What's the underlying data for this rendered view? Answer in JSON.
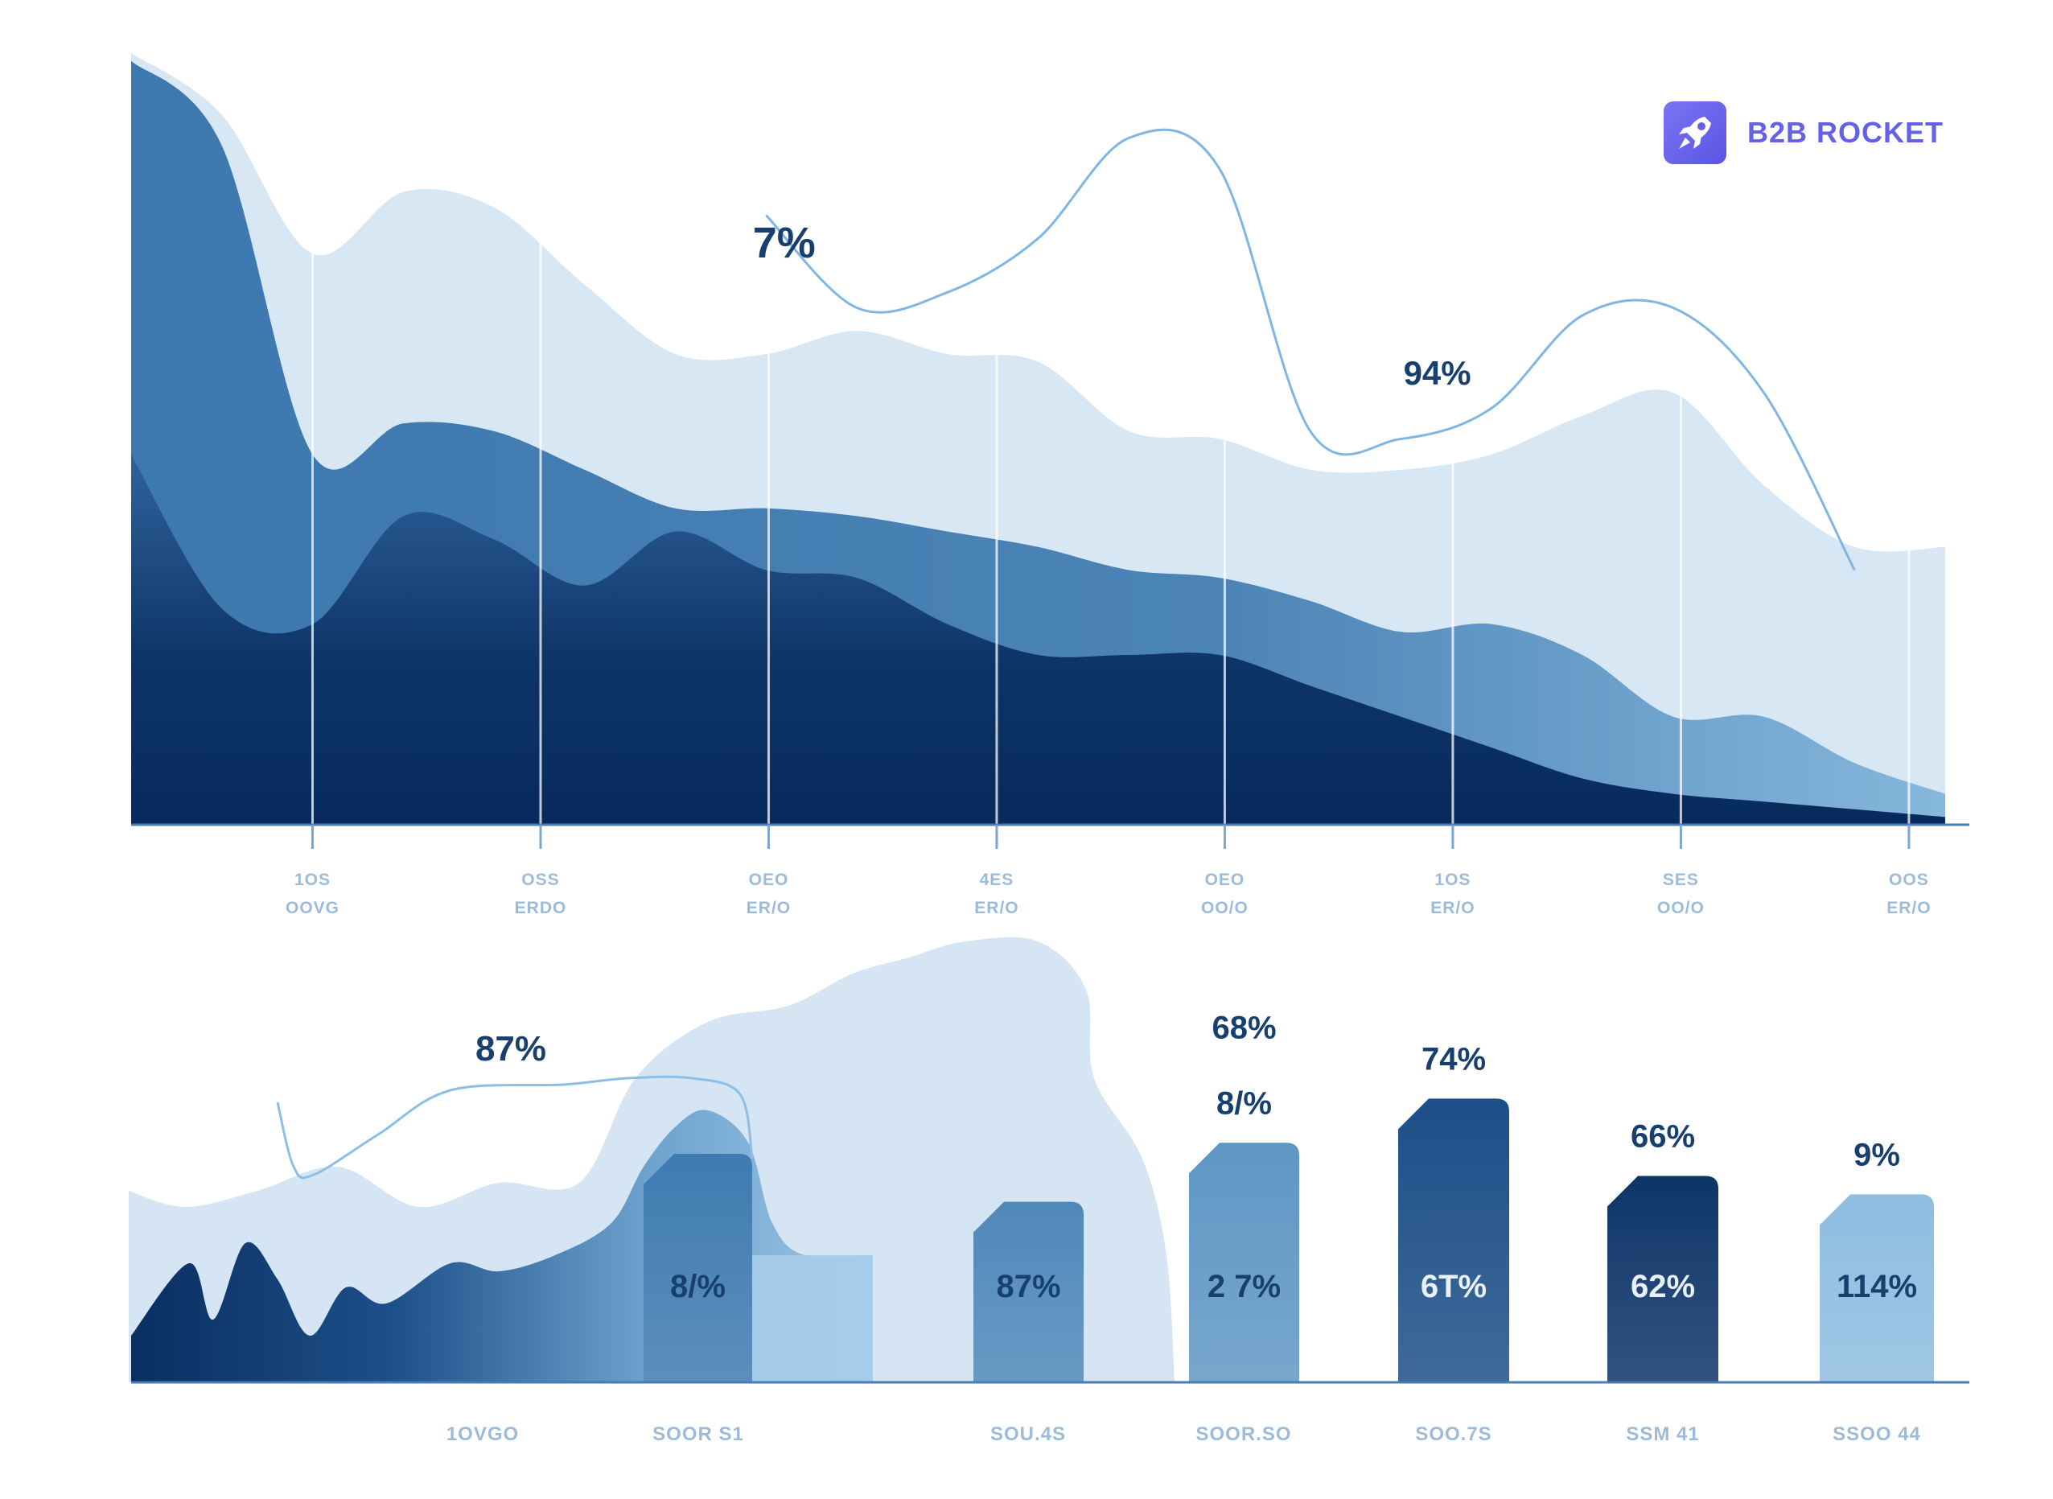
{
  "brand": {
    "name": "B2B ROCKET",
    "icon": "rocket-icon",
    "color": "#6561e6"
  },
  "colors": {
    "navy": "#0a2e61",
    "deep_blue": "#1d4f88",
    "mid_blue": "#3f7bb0",
    "steel_blue": "#5f97c4",
    "light_blue": "#9cc5e3",
    "pale_blue": "#d8e7f4",
    "axis": "#4a7cb0",
    "tick_text": "#9cbbd9",
    "label_text": "#17406f"
  },
  "chart_data": [
    {
      "type": "area",
      "title": "",
      "xlabel": "",
      "ylabel": "",
      "ylim": [
        0,
        100
      ],
      "x_ticks": [
        {
          "line1": "1OS",
          "line2": "OOVG"
        },
        {
          "line1": "OSS",
          "line2": "ERDO"
        },
        {
          "line1": "OEO",
          "line2": "ER/O"
        },
        {
          "line1": "4ES",
          "line2": "ER/O"
        },
        {
          "line1": "OEO",
          "line2": "OO/O"
        },
        {
          "line1": "1OS",
          "line2": "ER/O"
        },
        {
          "line1": "SES",
          "line2": "OO/O"
        },
        {
          "line1": "OOS",
          "line2": "ER/O"
        }
      ],
      "x": [
        0,
        5,
        10,
        15,
        20,
        25,
        30,
        35,
        40,
        45,
        50,
        55,
        60,
        65,
        70,
        75,
        80,
        85,
        90,
        95,
        100
      ],
      "series": [
        {
          "name": "pale",
          "values": [
            100,
            92,
            74,
            82,
            80,
            70,
            61,
            61,
            64,
            61,
            60,
            51,
            50,
            46,
            46,
            48,
            53,
            56,
            44,
            36,
            36
          ]
        },
        {
          "name": "mid",
          "values": [
            99,
            88,
            48,
            52,
            51,
            46,
            41,
            41,
            40,
            38,
            36,
            33,
            32,
            29,
            25,
            26,
            22,
            14,
            14,
            8,
            4
          ]
        },
        {
          "name": "navy",
          "values": [
            48,
            28,
            26,
            40,
            37,
            31,
            38,
            33,
            32,
            26,
            22,
            22,
            22,
            18,
            14,
            10,
            6,
            4,
            3,
            2,
            1
          ]
        }
      ],
      "trend_line": {
        "name": "highlight",
        "values": [
          null,
          null,
          null,
          null,
          null,
          null,
          null,
          79,
          67,
          69,
          76,
          89,
          85,
          51,
          50,
          54,
          66,
          67,
          56,
          33,
          null
        ]
      },
      "annotations": [
        {
          "text": "7%",
          "at_x": 36
        },
        {
          "text": "94%",
          "at_x": 72
        }
      ]
    },
    {
      "type": "bar",
      "title": "",
      "xlabel": "",
      "ylabel": "",
      "ylim": [
        0,
        100
      ],
      "area_annotation": "87%",
      "categories": [
        "1OVGO",
        "SOOR S1",
        "SOU.4S",
        "SOOR.SO",
        "SOO.7S",
        "SSM 41",
        "SSOO 44"
      ],
      "bars": [
        {
          "category": "SOOR S1",
          "value": 62,
          "inner_label": "8/%",
          "top_label": "",
          "top_label_2": "",
          "color": "#3f7bb0"
        },
        {
          "category": "SOU.4S",
          "value": 49,
          "inner_label": "87%",
          "top_label": "",
          "top_label_2": "",
          "color": "#4f88ba"
        },
        {
          "category": "SOOR.SO",
          "value": 65,
          "inner_label": "2 7%",
          "top_label": "8/%",
          "top_label_2": "68%",
          "color": "#5f97c4"
        },
        {
          "category": "SOO.7S",
          "value": 77,
          "inner_label": "6T%",
          "top_label": "74%",
          "top_label_2": "",
          "color": "#1d4f88"
        },
        {
          "category": "SSM 41",
          "value": 56,
          "inner_label": "62%",
          "top_label": "66%",
          "top_label_2": "",
          "color": "#0e3568"
        },
        {
          "category": "SSOO 44",
          "value": 51,
          "inner_label": "114%",
          "top_label": "9%",
          "top_label_2": "",
          "color": "#8fbde0"
        }
      ]
    }
  ]
}
